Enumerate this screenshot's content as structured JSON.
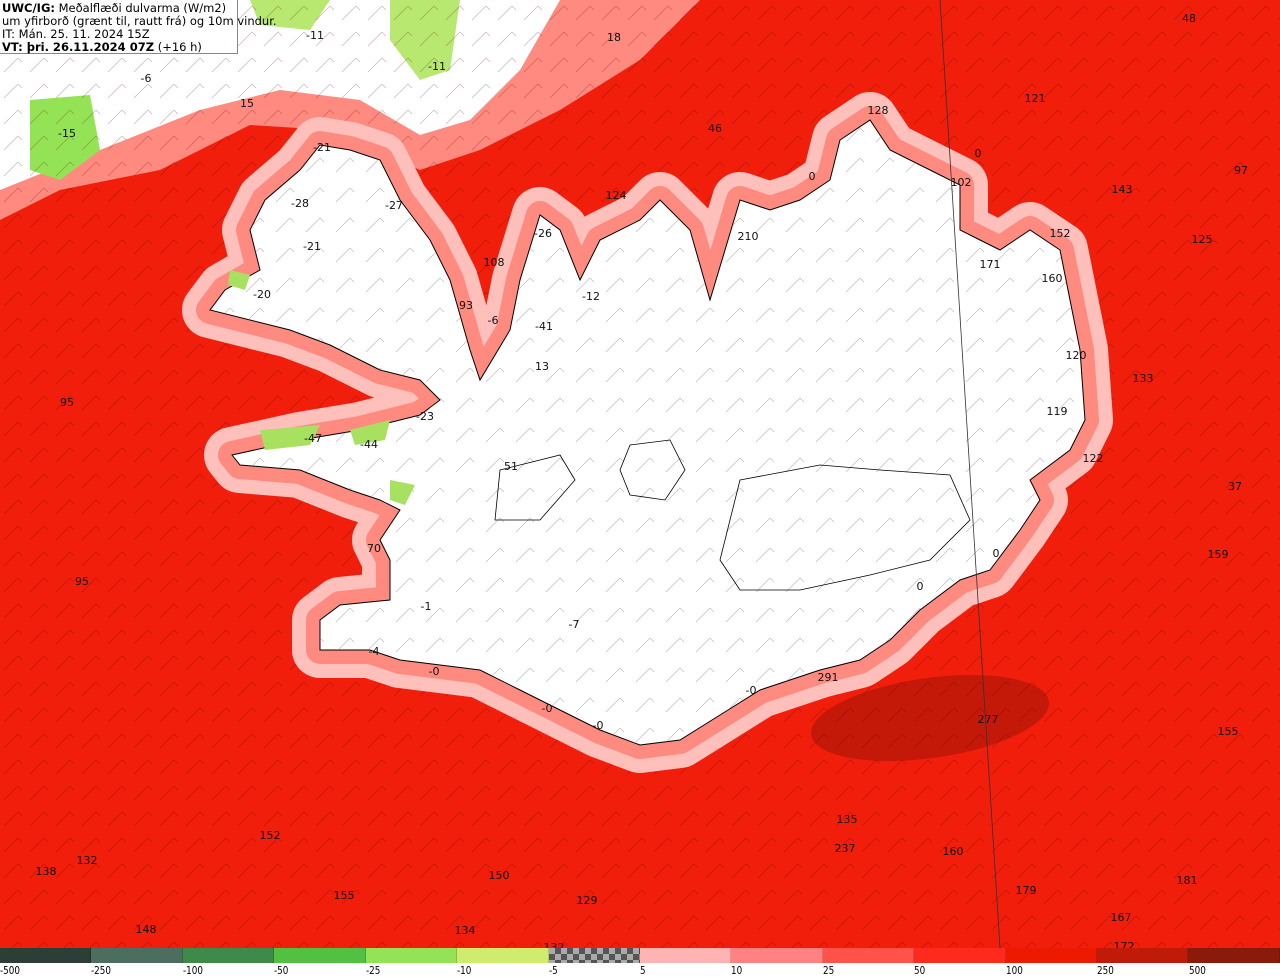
{
  "title": {
    "prefix": "UWC/IG:",
    "line1": " Meðalflæði dulvarma (W/m2)",
    "line2": "um yfirborð (grænt til, rautt frá) og 10m vindur.",
    "line3": "IT: Mán. 25. 11. 2024 15Z",
    "line4_bold": "VT: þri. 26.11.2024 07Z",
    "line4_rest": " (+16 h)"
  },
  "colors": {
    "sea": "#f01e0a",
    "land": "#ffffff",
    "halo1": "#ff8a80",
    "halo2": "#ffc0bc",
    "strong": "#c41808"
  },
  "legend": {
    "colors": [
      "#2b3f36",
      "#4c6e5e",
      "#3e8a4b",
      "#52c040",
      "#94e255",
      "#d0ec6e",
      "checker",
      "#ffb3b3",
      "#ff8282",
      "#ff5248",
      "#ff2a1e",
      "#ee1a00",
      "#c01a08",
      "#8a1a0a"
    ],
    "ticks": [
      "-500",
      "-250",
      "-100",
      "-50",
      "-25",
      "-10",
      "-5",
      "5",
      "10",
      "25",
      "50",
      "100",
      "250",
      "500"
    ]
  },
  "map_labels": [
    "48",
    "18",
    "-11",
    "-11",
    "-6",
    "15",
    "-15",
    "128",
    "121",
    "46",
    "97",
    "-21",
    "0",
    "0",
    "102",
    "143",
    "124",
    "-27",
    "-28",
    "-26",
    "210",
    "152",
    "125",
    "-21",
    "108",
    "171",
    "160",
    "-20",
    "-12",
    "93",
    "-6",
    "-41",
    "120",
    "13",
    "133",
    "95",
    "119",
    "-23",
    "-47",
    "-44",
    "122",
    "51",
    "37",
    "70",
    "0",
    "159",
    "95",
    "0",
    "-1",
    "-7",
    "-4",
    "-0",
    "291",
    "-0",
    "-0",
    "-0",
    "277",
    "155",
    "135",
    "152",
    "237",
    "160",
    "132",
    "138",
    "150",
    "179",
    "181",
    "155",
    "129",
    "167",
    "148",
    "134",
    "132",
    "172"
  ]
}
